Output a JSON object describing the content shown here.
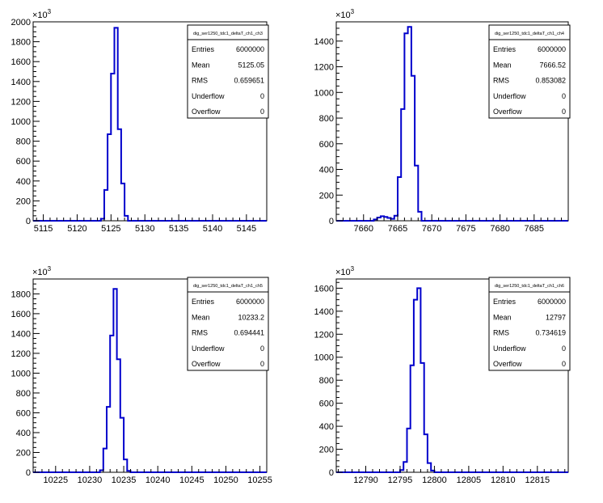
{
  "chart_data": [
    {
      "type": "bar",
      "stats_title": "dig_ser1250_tdc1_deltaT_ch1_ch3",
      "stats": [
        {
          "label": "Entries",
          "value": "6000000"
        },
        {
          "label": "Mean",
          "value": "5125.05"
        },
        {
          "label": "RMS",
          "value": "0.659651"
        },
        {
          "label": "Underflow",
          "value": "0"
        },
        {
          "label": "Overflow",
          "value": "0"
        }
      ],
      "y_multiplier": "×10",
      "y_exponent": "3",
      "xlim": [
        5113.5,
        5148
      ],
      "ylim": [
        0,
        2000
      ],
      "x_ticks": [
        5115,
        5120,
        5125,
        5130,
        5135,
        5140,
        5145
      ],
      "y_ticks": [
        0,
        200,
        400,
        600,
        800,
        1000,
        1200,
        1400,
        1600,
        1800,
        2000
      ],
      "bins": [
        {
          "x0": 5123.5,
          "x1": 5124.0,
          "y": 20
        },
        {
          "x0": 5124.0,
          "x1": 5124.5,
          "y": 310
        },
        {
          "x0": 5124.5,
          "x1": 5125.0,
          "y": 870
        },
        {
          "x0": 5125.0,
          "x1": 5125.5,
          "y": 1480
        },
        {
          "x0": 5125.5,
          "x1": 5126.0,
          "y": 1940
        },
        {
          "x0": 5126.0,
          "x1": 5126.5,
          "y": 920
        },
        {
          "x0": 5126.5,
          "x1": 5127.0,
          "y": 375
        },
        {
          "x0": 5127.0,
          "x1": 5127.5,
          "y": 50
        }
      ]
    },
    {
      "type": "bar",
      "stats_title": "dig_ser1250_tdc1_deltaT_ch1_ch4",
      "stats": [
        {
          "label": "Entries",
          "value": "6000000"
        },
        {
          "label": "Mean",
          "value": "7666.52"
        },
        {
          "label": "RMS",
          "value": "0.853082"
        },
        {
          "label": "Underflow",
          "value": "0"
        },
        {
          "label": "Overflow",
          "value": "0"
        }
      ],
      "y_multiplier": "×10",
      "y_exponent": "3",
      "xlim": [
        7656,
        7690
      ],
      "ylim": [
        0,
        1550
      ],
      "x_ticks": [
        7660,
        7665,
        7670,
        7675,
        7680,
        7685
      ],
      "y_ticks": [
        0,
        200,
        400,
        600,
        800,
        1000,
        1200,
        1400
      ],
      "bins": [
        {
          "x0": 7661.5,
          "x1": 7662.0,
          "y": 10
        },
        {
          "x0": 7662.0,
          "x1": 7662.5,
          "y": 25
        },
        {
          "x0": 7662.5,
          "x1": 7663.0,
          "y": 35
        },
        {
          "x0": 7663.0,
          "x1": 7663.5,
          "y": 30
        },
        {
          "x0": 7663.5,
          "x1": 7664.0,
          "y": 22
        },
        {
          "x0": 7664.0,
          "x1": 7664.5,
          "y": 15
        },
        {
          "x0": 7664.5,
          "x1": 7665.0,
          "y": 40
        },
        {
          "x0": 7665.0,
          "x1": 7665.5,
          "y": 340
        },
        {
          "x0": 7665.5,
          "x1": 7666.0,
          "y": 870
        },
        {
          "x0": 7666.0,
          "x1": 7666.5,
          "y": 1460
        },
        {
          "x0": 7666.5,
          "x1": 7667.0,
          "y": 1510
        },
        {
          "x0": 7667.0,
          "x1": 7667.5,
          "y": 1130
        },
        {
          "x0": 7667.5,
          "x1": 7668.0,
          "y": 430
        },
        {
          "x0": 7668.0,
          "x1": 7668.5,
          "y": 70
        }
      ]
    },
    {
      "type": "bar",
      "stats_title": "dig_ser1250_tdc1_deltaT_ch1_ch5",
      "stats": [
        {
          "label": "Entries",
          "value": "6000000"
        },
        {
          "label": "Mean",
          "value": "10233.2"
        },
        {
          "label": "RMS",
          "value": "0.694441"
        },
        {
          "label": "Underflow",
          "value": "0"
        },
        {
          "label": "Overflow",
          "value": "0"
        }
      ],
      "y_multiplier": "×10",
      "y_exponent": "3",
      "xlim": [
        10221.7,
        10256
      ],
      "ylim": [
        0,
        1950
      ],
      "x_ticks": [
        10225,
        10230,
        10235,
        10240,
        10245,
        10250,
        10255
      ],
      "y_ticks": [
        0,
        200,
        400,
        600,
        800,
        1000,
        1200,
        1400,
        1600,
        1800
      ],
      "bins": [
        {
          "x0": 10231.5,
          "x1": 10232.0,
          "y": 20
        },
        {
          "x0": 10232.0,
          "x1": 10232.5,
          "y": 240
        },
        {
          "x0": 10232.5,
          "x1": 10233.0,
          "y": 660
        },
        {
          "x0": 10233.0,
          "x1": 10233.5,
          "y": 1380
        },
        {
          "x0": 10233.5,
          "x1": 10234.0,
          "y": 1850
        },
        {
          "x0": 10234.0,
          "x1": 10234.5,
          "y": 1140
        },
        {
          "x0": 10234.5,
          "x1": 10235.0,
          "y": 550
        },
        {
          "x0": 10235.0,
          "x1": 10235.5,
          "y": 130
        },
        {
          "x0": 10235.5,
          "x1": 10236.0,
          "y": 15
        }
      ]
    },
    {
      "type": "bar",
      "stats_title": "dig_ser1250_tdc1_deltaT_ch1_ch6",
      "stats": [
        {
          "label": "Entries",
          "value": "6000000"
        },
        {
          "label": "Mean",
          "value": "12797"
        },
        {
          "label": "RMS",
          "value": "0.734619"
        },
        {
          "label": "Underflow",
          "value": "0"
        },
        {
          "label": "Overflow",
          "value": "0"
        }
      ],
      "y_multiplier": "×10",
      "y_exponent": "3",
      "xlim": [
        12785.7,
        12819.5
      ],
      "ylim": [
        0,
        1680
      ],
      "x_ticks": [
        12790,
        12795,
        12800,
        12805,
        12810,
        12815
      ],
      "y_ticks": [
        0,
        200,
        400,
        600,
        800,
        1000,
        1200,
        1400,
        1600
      ],
      "bins": [
        {
          "x0": 12795.0,
          "x1": 12795.5,
          "y": 20
        },
        {
          "x0": 12795.5,
          "x1": 12796.0,
          "y": 90
        },
        {
          "x0": 12796.0,
          "x1": 12796.5,
          "y": 380
        },
        {
          "x0": 12796.5,
          "x1": 12797.0,
          "y": 930
        },
        {
          "x0": 12797.0,
          "x1": 12797.5,
          "y": 1500
        },
        {
          "x0": 12797.5,
          "x1": 12798.0,
          "y": 1600
        },
        {
          "x0": 12798.0,
          "x1": 12798.5,
          "y": 950
        },
        {
          "x0": 12798.5,
          "x1": 12799.0,
          "y": 330
        },
        {
          "x0": 12799.0,
          "x1": 12799.5,
          "y": 80
        },
        {
          "x0": 12799.5,
          "x1": 12800.0,
          "y": 15
        }
      ]
    }
  ]
}
